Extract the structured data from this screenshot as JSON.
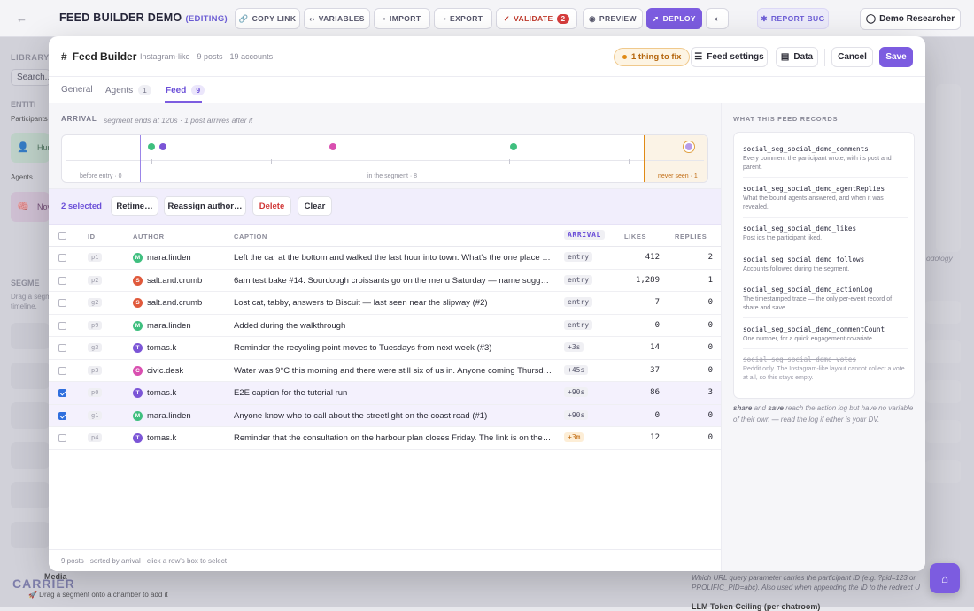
{
  "topbar": {
    "title": "FEED BUILDER DEMO",
    "editing": "(EDITING)",
    "copy_link": "COPY LINK",
    "variables": "VARIABLES",
    "import": "IMPORT",
    "export": "EXPORT",
    "validate": "VALIDATE",
    "validate_count": "2",
    "preview": "PREVIEW",
    "deploy": "DEPLOY",
    "report_bug": "REPORT BUG",
    "user": "Demo Researcher"
  },
  "background": {
    "library": "LIBRARY",
    "search_placeholder": "Search...",
    "entities": "ENTITI",
    "participants": "Participants",
    "hum": "Hur",
    "agents": "Agents",
    "nov": "Nov",
    "segments": "SEGME",
    "drag1": "Drag a segm",
    "drag2": "timeline.",
    "media": "Media",
    "drag_hint": "🚀 Drag a segment onto a chamber to add it",
    "logo": "CARRIER",
    "odology": "odology",
    "url_note": "Which URL query parameter carries the participant ID (e.g. ?pid=123 or PROLIFIC_PID=abc). Also used when appending the ID to the redirect U",
    "llm": "LLM Token Ceiling (per chatroom)"
  },
  "modal": {
    "title": "Feed Builder",
    "subtitle": "Instagram-like · 9 posts · 19 accounts",
    "fix": "1 thing to fix",
    "feed_settings": "Feed settings",
    "data": "Data",
    "cancel": "Cancel",
    "save": "Save",
    "tabs": [
      {
        "label": "General",
        "count": ""
      },
      {
        "label": "Agents",
        "count": "1"
      },
      {
        "label": "Feed",
        "count": "9"
      }
    ],
    "arrival": {
      "label": "ARRIVAL",
      "note": "segment ends at 120s · 1 post arrives after it",
      "before": "before entry · 0",
      "in_segment": "in the segment · 8",
      "never": "never seen · 1"
    },
    "selection": {
      "count": "2 selected",
      "retime": "Retime…",
      "reassign": "Reassign author…",
      "delete": "Delete",
      "clear": "Clear"
    },
    "columns": {
      "id": "ID",
      "author": "AUTHOR",
      "caption": "CAPTION",
      "arrival": "ARRIVAL",
      "likes": "LIKES",
      "replies": "REPLIES"
    },
    "rows": [
      {
        "id": "p1",
        "author": "mara.linden",
        "initial": "M",
        "color": "#3fbf7f",
        "caption": "Left the car at the bottom and walked the last hour into town. What's the one place you'd never skip?",
        "arrival": "entry",
        "likes": "412",
        "replies": "2",
        "selected": false
      },
      {
        "id": "p2",
        "author": "salt.and.crumb",
        "initial": "S",
        "color": "#e0593b",
        "caption": "6am test bake #14. Sourdough croissants go on the menu Saturday — name suggestions welcome",
        "arrival": "entry",
        "likes": "1,289",
        "replies": "1",
        "selected": false
      },
      {
        "id": "g2",
        "author": "salt.and.crumb",
        "initial": "S",
        "color": "#e0593b",
        "caption": "Lost cat, tabby, answers to Biscuit — last seen near the slipway (#2)",
        "arrival": "entry",
        "likes": "7",
        "replies": "0",
        "selected": false
      },
      {
        "id": "p9",
        "author": "mara.linden",
        "initial": "M",
        "color": "#3fbf7f",
        "caption": "Added during the walkthrough",
        "arrival": "entry",
        "likes": "0",
        "replies": "0",
        "selected": false
      },
      {
        "id": "g3",
        "author": "tomas.k",
        "initial": "T",
        "color": "#7b55d6",
        "caption": "Reminder the recycling point moves to Tuesdays from next week (#3)",
        "arrival": "+3s",
        "likes": "14",
        "replies": "0",
        "selected": false
      },
      {
        "id": "p3",
        "author": "civic.desk",
        "initial": "C",
        "color": "#d94fb0",
        "caption": "Water was 9°C this morning and there were still six of us in. Anyone coming Thursday?",
        "arrival": "+45s",
        "likes": "37",
        "replies": "0",
        "selected": false
      },
      {
        "id": "p0",
        "author": "tomas.k",
        "initial": "T",
        "color": "#7b55d6",
        "caption": "E2E caption for the tutorial run",
        "arrival": "+90s",
        "likes": "86",
        "replies": "3",
        "selected": true
      },
      {
        "id": "g1",
        "author": "mara.linden",
        "initial": "M",
        "color": "#3fbf7f",
        "caption": "Anyone know who to call about the streetlight on the coast road (#1)",
        "arrival": "+90s",
        "likes": "0",
        "replies": "0",
        "selected": true
      },
      {
        "id": "p4",
        "author": "tomas.k",
        "initial": "T",
        "color": "#7b55d6",
        "caption": "Reminder that the consultation on the harbour plan closes Friday. The link is on the council page",
        "arrival": "+3m",
        "likes": "12",
        "replies": "0",
        "selected": false
      }
    ],
    "footer": "9 posts · sorted by arrival · click a row's box to select",
    "records": {
      "heading": "WHAT THIS FEED RECORDS",
      "items": [
        {
          "key": "social_seg_social_demo_comments",
          "desc": "Every comment the participant wrote, with its post and parent."
        },
        {
          "key": "social_seg_social_demo_agentReplies",
          "desc": "What the bound agents answered, and when it was revealed."
        },
        {
          "key": "social_seg_social_demo_likes",
          "desc": "Post ids the participant liked."
        },
        {
          "key": "social_seg_social_demo_follows",
          "desc": "Accounts followed during the segment."
        },
        {
          "key": "social_seg_social_demo_actionLog",
          "desc": "The timestamped trace — the only per-event record of share and save."
        },
        {
          "key": "social_seg_social_demo_commentCount",
          "desc": "One number, for a quick engagement covariate."
        },
        {
          "key": "social_seg_social_demo_votes",
          "desc": "Reddit only. The Instagram-like layout cannot collect a vote at all, so this stays empty."
        }
      ],
      "note_share": "share",
      "note_and": "and",
      "note_save": "save",
      "note_rest": "reach the action log but have no variable of their own — read the log if either is your DV."
    }
  }
}
